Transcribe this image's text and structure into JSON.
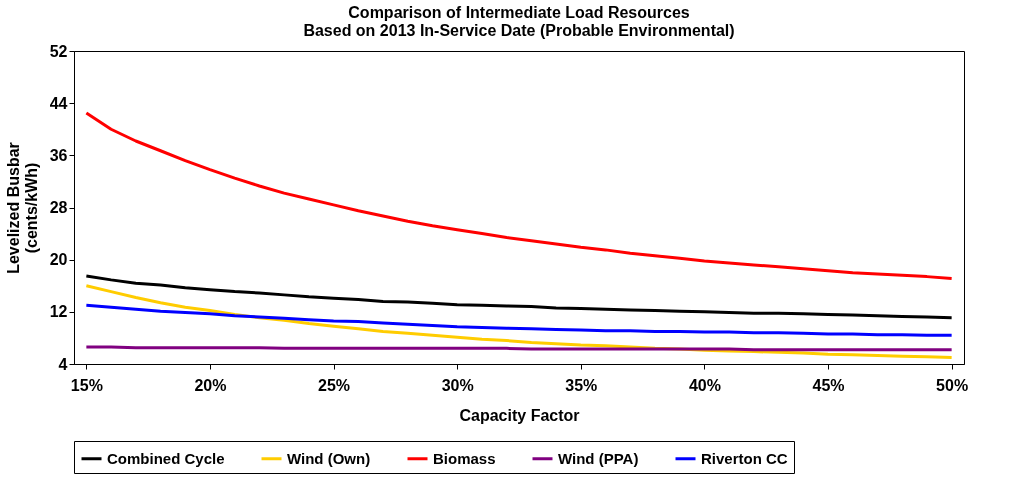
{
  "chart_data": {
    "type": "line",
    "title": "Comparison of Intermediate Load Resources\nBased on 2013 In-Service Date (Probable Environmental)",
    "xlabel": "Capacity Factor",
    "ylabel": "Levelized Busbar\n(cents/kWh)",
    "x": [
      15,
      16,
      17,
      18,
      19,
      20,
      21,
      22,
      23,
      24,
      25,
      26,
      27,
      28,
      29,
      30,
      31,
      32,
      33,
      34,
      35,
      36,
      37,
      38,
      39,
      40,
      41,
      42,
      43,
      44,
      45,
      46,
      47,
      48,
      49,
      50
    ],
    "xlim": [
      14.5,
      50.5
    ],
    "xticks": [
      {
        "value": 15,
        "label": "15%"
      },
      {
        "value": 20,
        "label": "20%"
      },
      {
        "value": 25,
        "label": "25%"
      },
      {
        "value": 30,
        "label": "30%"
      },
      {
        "value": 35,
        "label": "35%"
      },
      {
        "value": 40,
        "label": "40%"
      },
      {
        "value": 45,
        "label": "45%"
      },
      {
        "value": 50,
        "label": "50%"
      }
    ],
    "ylim": [
      4,
      52
    ],
    "yticks": [
      4,
      12,
      20,
      28,
      36,
      44,
      52
    ],
    "grid": false,
    "legend": "bottom",
    "marker": "none",
    "line_style": "solid",
    "series": [
      {
        "name": "Combined Cycle",
        "color": "#000000",
        "values": [
          17.5,
          16.9,
          16.4,
          16.1,
          15.7,
          15.4,
          15.1,
          14.9,
          14.6,
          14.3,
          14.1,
          13.9,
          13.6,
          13.5,
          13.3,
          13.1,
          13.0,
          12.9,
          12.8,
          12.6,
          12.5,
          12.4,
          12.3,
          12.2,
          12.1,
          12.0,
          11.9,
          11.8,
          11.8,
          11.7,
          11.6,
          11.5,
          11.4,
          11.3,
          11.2,
          11.1
        ]
      },
      {
        "name": "Wind (Own)",
        "color": "#ffcc00",
        "values": [
          16.0,
          15.1,
          14.2,
          13.4,
          12.7,
          12.2,
          11.6,
          11.1,
          10.7,
          10.2,
          9.8,
          9.4,
          9.0,
          8.7,
          8.4,
          8.1,
          7.8,
          7.6,
          7.3,
          7.1,
          6.9,
          6.8,
          6.6,
          6.4,
          6.3,
          6.1,
          6.0,
          5.9,
          5.8,
          5.7,
          5.5,
          5.4,
          5.3,
          5.2,
          5.1,
          5.0
        ]
      },
      {
        "name": "Biomass",
        "color": "#ff0000",
        "values": [
          42.5,
          40.0,
          38.2,
          36.7,
          35.2,
          33.8,
          32.5,
          31.3,
          30.2,
          29.3,
          28.4,
          27.5,
          26.7,
          25.9,
          25.2,
          24.6,
          24.0,
          23.4,
          22.9,
          22.4,
          21.9,
          21.5,
          21.0,
          20.6,
          20.2,
          19.8,
          19.5,
          19.2,
          18.9,
          18.6,
          18.3,
          18.0,
          17.8,
          17.6,
          17.4,
          17.1
        ]
      },
      {
        "name": "Wind (PPA)",
        "color": "#800080",
        "values": [
          6.6,
          6.6,
          6.5,
          6.5,
          6.5,
          6.5,
          6.5,
          6.5,
          6.4,
          6.4,
          6.4,
          6.4,
          6.4,
          6.4,
          6.4,
          6.4,
          6.4,
          6.4,
          6.3,
          6.3,
          6.3,
          6.3,
          6.3,
          6.3,
          6.3,
          6.3,
          6.3,
          6.2,
          6.2,
          6.2,
          6.2,
          6.2,
          6.2,
          6.2,
          6.2,
          6.2
        ]
      },
      {
        "name": "Riverton CC",
        "color": "#0000ff",
        "values": [
          13.0,
          12.7,
          12.4,
          12.1,
          11.9,
          11.7,
          11.4,
          11.2,
          11.0,
          10.8,
          10.6,
          10.5,
          10.3,
          10.1,
          9.9,
          9.7,
          9.6,
          9.5,
          9.4,
          9.3,
          9.2,
          9.1,
          9.1,
          9.0,
          9.0,
          8.9,
          8.9,
          8.8,
          8.8,
          8.7,
          8.6,
          8.6,
          8.5,
          8.5,
          8.4,
          8.4
        ]
      }
    ]
  }
}
